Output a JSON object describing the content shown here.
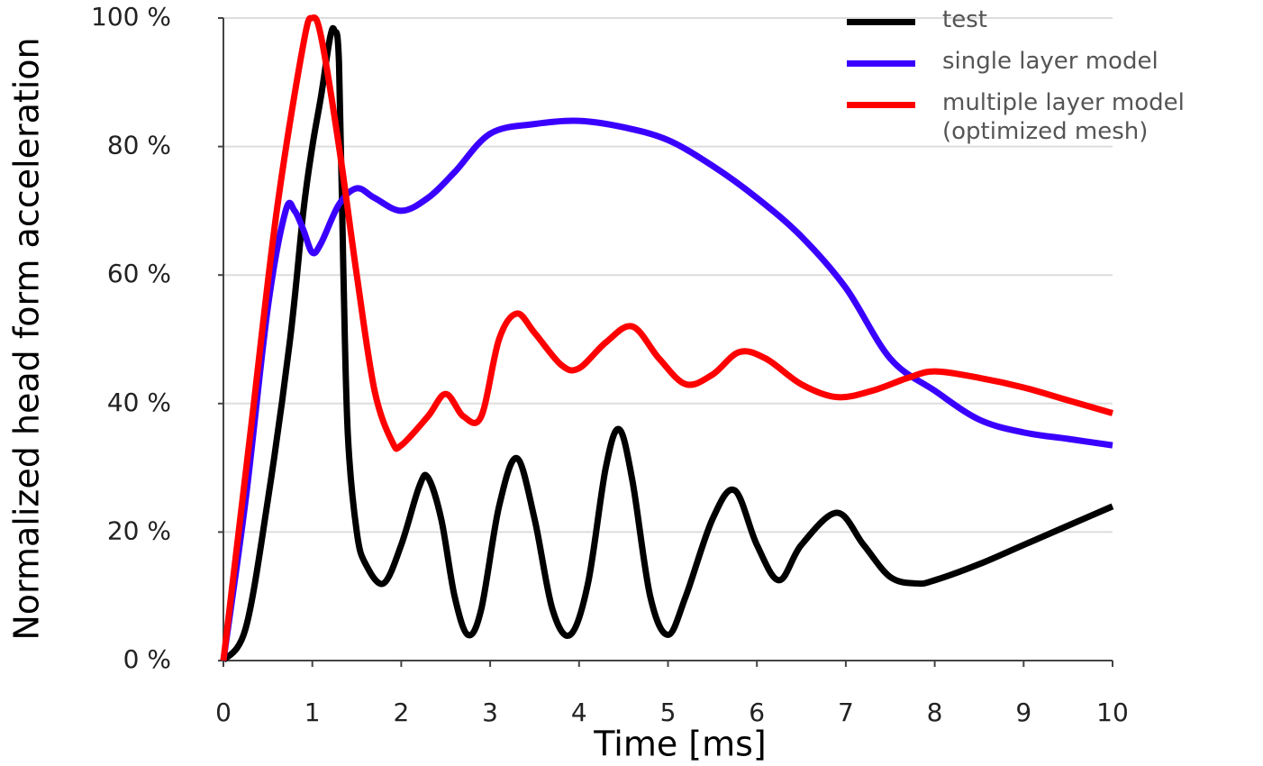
{
  "chart_data": {
    "type": "line",
    "x_label": "Time [ms]",
    "y_label": "Normalized head form acceleration",
    "xlim": [
      0,
      10
    ],
    "ylim": [
      0,
      100
    ],
    "xticks": [
      0,
      1,
      2,
      3,
      4,
      5,
      6,
      7,
      8,
      9,
      10
    ],
    "yticks": [
      {
        "value": 0,
        "label": "0 %"
      },
      {
        "value": 20,
        "label": "20 %"
      },
      {
        "value": 40,
        "label": "40 %"
      },
      {
        "value": 60,
        "label": "60 %"
      },
      {
        "value": 80,
        "label": "80 %"
      },
      {
        "value": 100,
        "label": "100 %"
      }
    ],
    "grid": true,
    "legend": "top-right",
    "series": [
      {
        "name": "test",
        "color": "#000000",
        "x": [
          0,
          0.25,
          0.5,
          0.75,
          0.9,
          1.0,
          1.1,
          1.2,
          1.25,
          1.3,
          1.35,
          1.4,
          1.5,
          1.6,
          1.8,
          2.0,
          2.2,
          2.3,
          2.45,
          2.6,
          2.75,
          2.9,
          3.1,
          3.3,
          3.5,
          3.7,
          3.9,
          4.1,
          4.3,
          4.45,
          4.6,
          4.8,
          5.0,
          5.2,
          5.5,
          5.75,
          6.0,
          6.25,
          6.5,
          6.9,
          7.2,
          7.5,
          7.8,
          8.0,
          8.5,
          9.0,
          9.5,
          10
        ],
        "values": [
          0,
          5,
          25,
          50,
          70,
          80,
          88,
          97,
          98,
          93,
          60,
          35,
          20,
          15,
          12,
          18,
          27,
          28.5,
          22,
          10,
          4,
          8,
          24,
          31.5,
          22,
          8,
          4,
          12,
          30,
          36,
          28,
          10,
          4,
          10,
          22,
          26.5,
          18,
          12.5,
          18,
          23,
          18,
          13,
          12,
          12.5,
          15,
          18,
          21,
          24
        ]
      },
      {
        "name": "single layer model",
        "color": "#3a00ff",
        "x": [
          0,
          0.25,
          0.5,
          0.7,
          0.8,
          0.9,
          1.0,
          1.1,
          1.3,
          1.5,
          1.7,
          2.0,
          2.3,
          2.6,
          3.0,
          3.5,
          4.0,
          4.5,
          5.0,
          5.5,
          6.0,
          6.5,
          7.0,
          7.5,
          8.0,
          8.5,
          9.0,
          9.5,
          10
        ],
        "values": [
          0,
          25,
          55,
          70,
          70,
          67,
          63.5,
          65,
          71,
          73.5,
          72,
          70,
          72,
          76,
          82,
          83.5,
          84,
          83,
          81,
          77,
          72,
          66,
          58,
          47,
          42,
          37.5,
          35.5,
          34.5,
          33.5
        ]
      },
      {
        "name": "multiple layer model (optimized mesh)",
        "color": "#ff0000",
        "x": [
          0,
          0.3,
          0.6,
          0.9,
          1.0,
          1.1,
          1.3,
          1.5,
          1.7,
          1.9,
          2.0,
          2.3,
          2.5,
          2.7,
          2.9,
          3.1,
          3.3,
          3.5,
          3.8,
          4.0,
          4.3,
          4.6,
          4.9,
          5.2,
          5.5,
          5.8,
          6.1,
          6.5,
          6.9,
          7.3,
          7.7,
          8.0,
          8.5,
          9.0,
          9.5,
          10
        ],
        "values": [
          0,
          35,
          70,
          96,
          100,
          97,
          80,
          60,
          42,
          34,
          33.5,
          38,
          41.5,
          38,
          38,
          50,
          54,
          51,
          46,
          45.5,
          49.5,
          52,
          47,
          43,
          44.5,
          48,
          47,
          43,
          41,
          42,
          44,
          45,
          44,
          42.5,
          40.5,
          38.5
        ]
      }
    ]
  }
}
